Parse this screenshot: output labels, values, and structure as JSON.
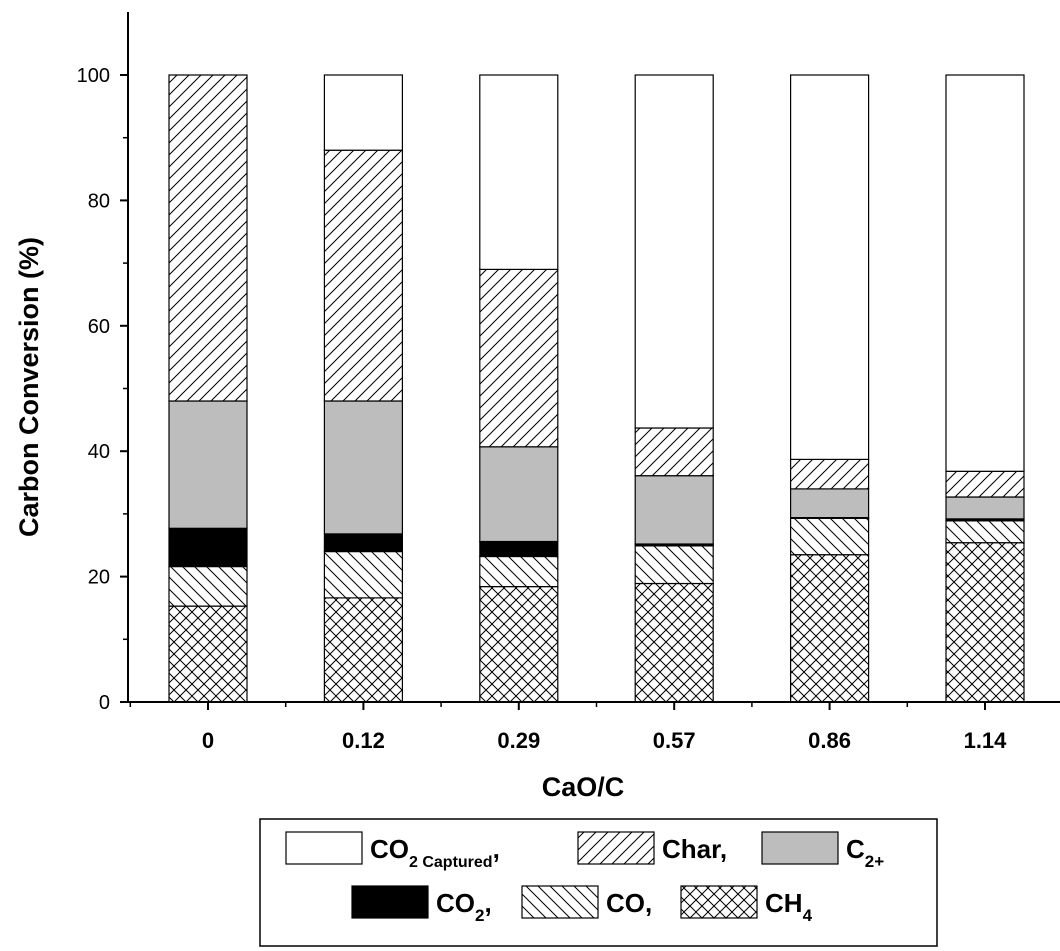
{
  "chart_data": {
    "type": "bar",
    "stacked": true,
    "title": "",
    "xlabel": "CaO/C",
    "ylabel": "Carbon Conversion (%)",
    "ylim": [
      0,
      110
    ],
    "yticks": [
      0,
      20,
      40,
      60,
      80,
      100
    ],
    "categories": [
      "0",
      "0.12",
      "0.29",
      "0.57",
      "0.86",
      "1.14"
    ],
    "grid": false,
    "legend_position": "bottom",
    "series": [
      {
        "key": "ch4",
        "name": "CH",
        "sub": "4",
        "suffix": "",
        "fill": "crosshatch",
        "values": [
          15.3,
          16.6,
          18.4,
          18.9,
          23.5,
          25.4
        ]
      },
      {
        "key": "co",
        "name": "CO",
        "sub": "",
        "suffix": ",",
        "fill": "backslash",
        "values": [
          6.3,
          7.4,
          4.8,
          6.0,
          5.8,
          3.5
        ]
      },
      {
        "key": "co2",
        "name": "CO",
        "sub": "2",
        "suffix": ",",
        "fill": "#000000",
        "values": [
          6.1,
          2.8,
          2.4,
          0.3,
          0.1,
          0.3
        ]
      },
      {
        "key": "c2",
        "name": "C",
        "sub": "2+",
        "suffix": "",
        "fill": "#bdbdbd",
        "values": [
          20.3,
          21.2,
          15.1,
          10.9,
          4.6,
          3.5
        ]
      },
      {
        "key": "char",
        "name": "Char",
        "sub": "",
        "suffix": ",",
        "fill": "slash",
        "values": [
          52.0,
          40.0,
          28.3,
          7.6,
          4.7,
          4.1
        ]
      },
      {
        "key": "co2c",
        "name": "CO",
        "sub": "2 Captured",
        "suffix": ",",
        "fill": "#ffffff",
        "values": [
          0.0,
          12.0,
          31.0,
          56.3,
          61.3,
          63.2
        ]
      }
    ],
    "legend_rows": [
      [
        "co2c",
        "char",
        "c2"
      ],
      [
        "co2",
        "co",
        "ch4"
      ]
    ]
  }
}
